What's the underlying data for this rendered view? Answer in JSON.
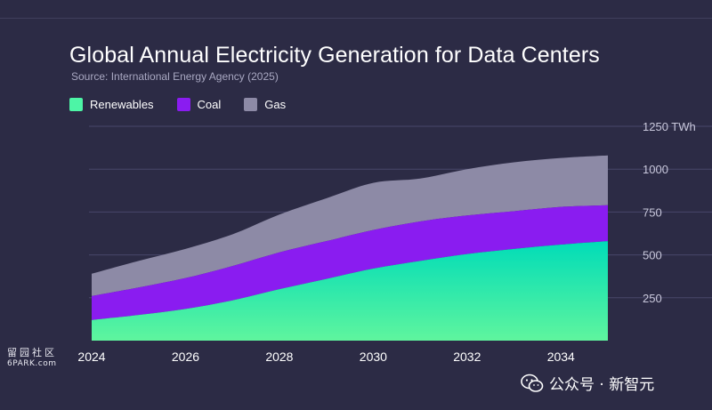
{
  "chart_data": {
    "type": "area",
    "stacked": true,
    "title": "Global Annual Electricity Generation for Data Centers",
    "subtitle": "Source:  International Energy Agency (2025)",
    "x": [
      2024,
      2025,
      2026,
      2027,
      2028,
      2029,
      2030,
      2031,
      2032,
      2033,
      2034,
      2035
    ],
    "x_tick_labels": [
      "2024",
      "2026",
      "2028",
      "2030",
      "2032",
      "2034"
    ],
    "y_tick_labels": [
      "1250 TWh",
      "1000",
      "750",
      "500",
      "250"
    ],
    "ylim": [
      0,
      1250
    ],
    "grid": true,
    "legend_position": "top-left",
    "series": [
      {
        "name": "Renewables",
        "color": "#00dfb2",
        "values": [
          120,
          150,
          185,
          235,
          300,
          360,
          420,
          465,
          505,
          535,
          560,
          580
        ]
      },
      {
        "name": "Coal",
        "color": "#8a1cf0",
        "values": [
          140,
          160,
          180,
          200,
          215,
          220,
          225,
          230,
          225,
          220,
          220,
          210
        ]
      },
      {
        "name": "Gas",
        "color": "#8d8aa6",
        "values": [
          130,
          155,
          170,
          185,
          220,
          250,
          275,
          250,
          270,
          285,
          285,
          290
        ]
      }
    ]
  },
  "watermarks": {
    "left_line1": "留园社区",
    "left_line2": "6PARK.com",
    "right": "公众号 · 新智元"
  }
}
